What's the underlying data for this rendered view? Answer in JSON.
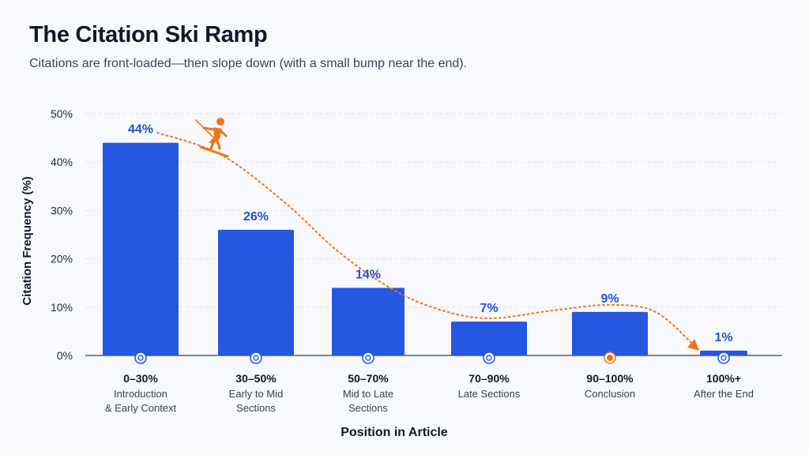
{
  "header": {
    "title": "The Citation Ski Ramp",
    "subtitle": "Citations are front-loaded—then slope down (with a small bump near the end)."
  },
  "colors": {
    "bar": "#2557e0",
    "label": "#2550d6",
    "accent": "#f0751f",
    "grid": "#dfe4ea"
  },
  "icons": {
    "skier": "skier-icon"
  },
  "chart_data": {
    "type": "bar",
    "xlabel": "Position in Article",
    "ylabel": "Citation Frequency (%)",
    "ylim": [
      0,
      50
    ],
    "yticks": [
      0,
      10,
      20,
      30,
      40,
      50
    ],
    "ytick_labels": [
      "0%",
      "10%",
      "20%",
      "30%",
      "40%",
      "50%"
    ],
    "grid": true,
    "categories": [
      {
        "range": "0–30%",
        "desc": [
          "Introduction",
          "& Early Context"
        ]
      },
      {
        "range": "30–50%",
        "desc": [
          "Early to Mid",
          "Sections"
        ]
      },
      {
        "range": "50–70%",
        "desc": [
          "Mid to Late",
          "Sections"
        ]
      },
      {
        "range": "70–90%",
        "desc": [
          "Late Sections"
        ]
      },
      {
        "range": "90–100%",
        "desc": [
          "Conclusion"
        ]
      },
      {
        "range": "100%+",
        "desc": [
          "After the End"
        ]
      }
    ],
    "values": [
      44,
      26,
      14,
      7,
      9,
      1
    ],
    "value_labels": [
      "44%",
      "26%",
      "14%",
      "7%",
      "9%",
      "1%"
    ],
    "highlight_index": 4,
    "trend_line": "dotted curve through bar tops ending in an arrow"
  }
}
